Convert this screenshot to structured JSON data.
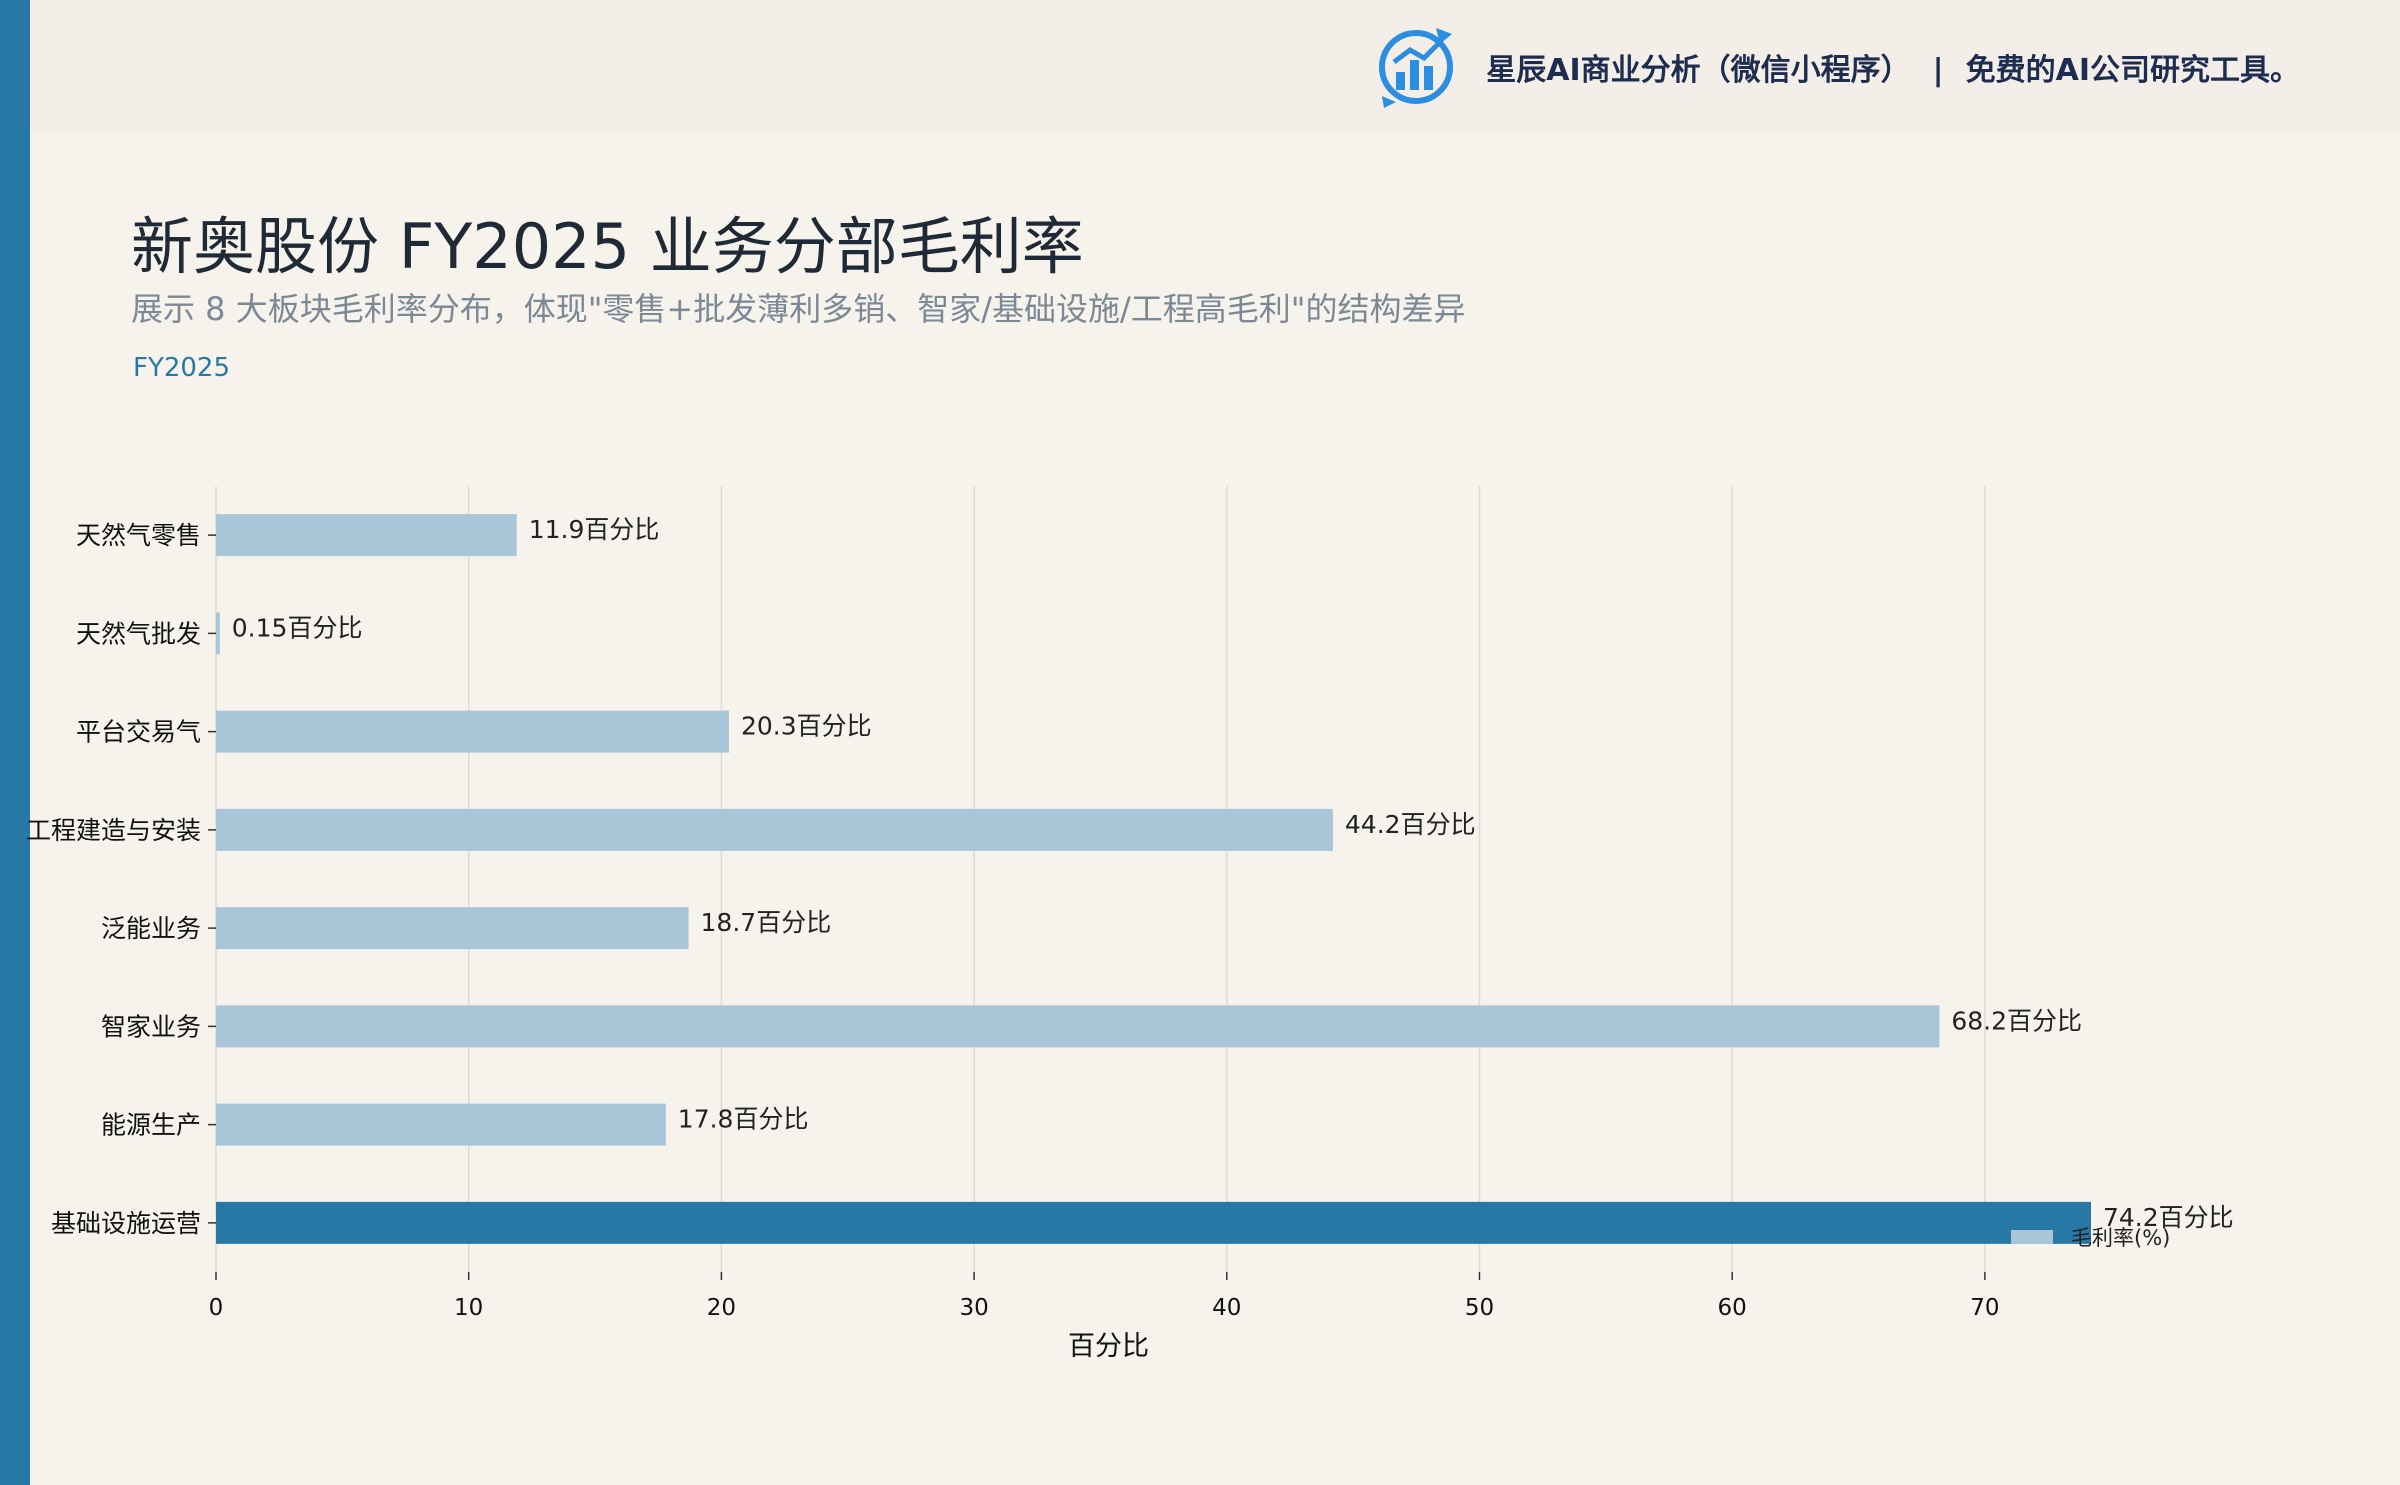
{
  "header": {
    "brand_name": "星辰AI商业分析（微信小程序）",
    "brand_separator": "|",
    "brand_tagline": "免费的AI公司研究工具。",
    "logo_icon": "bar-chart-refresh-logo-icon"
  },
  "title": "新奥股份 FY2025 业务分部毛利率",
  "subtitle": "展示 8 大板块毛利率分布，体现\"零售+批发薄利多销、智家/基础设施/工程高毛利\"的结构差异",
  "period": "FY2025",
  "colors": {
    "accent": "#2878a6",
    "bar_default": "#a9c5d8",
    "bar_highlight": "#2878a6",
    "background": "#f6f3ed"
  },
  "chart_data": {
    "type": "bar",
    "orientation": "horizontal",
    "categories": [
      "天然气零售",
      "天然气批发",
      "平台交易气",
      "工程建造与安装",
      "泛能业务",
      "智家业务",
      "能源生产",
      "基础设施运营"
    ],
    "series": [
      {
        "name": "毛利率(%)",
        "values": [
          11.9,
          0.15,
          20.3,
          44.2,
          18.7,
          68.2,
          17.8,
          74.2
        ]
      }
    ],
    "value_labels": [
      "11.9百分比",
      "0.15百分比",
      "20.3百分比",
      "44.2百分比",
      "18.7百分比",
      "68.2百分比",
      "17.8百分比",
      "74.2百分比"
    ],
    "highlight_index": 7,
    "xlabel": "百分比",
    "ylabel": "",
    "xlim": [
      0,
      74.2
    ],
    "xticks": [
      0,
      10,
      20,
      30,
      40,
      50,
      60,
      70
    ],
    "grid": "vertical",
    "legend": {
      "position": "bottom-right",
      "entries": [
        "毛利率(%)"
      ]
    }
  }
}
